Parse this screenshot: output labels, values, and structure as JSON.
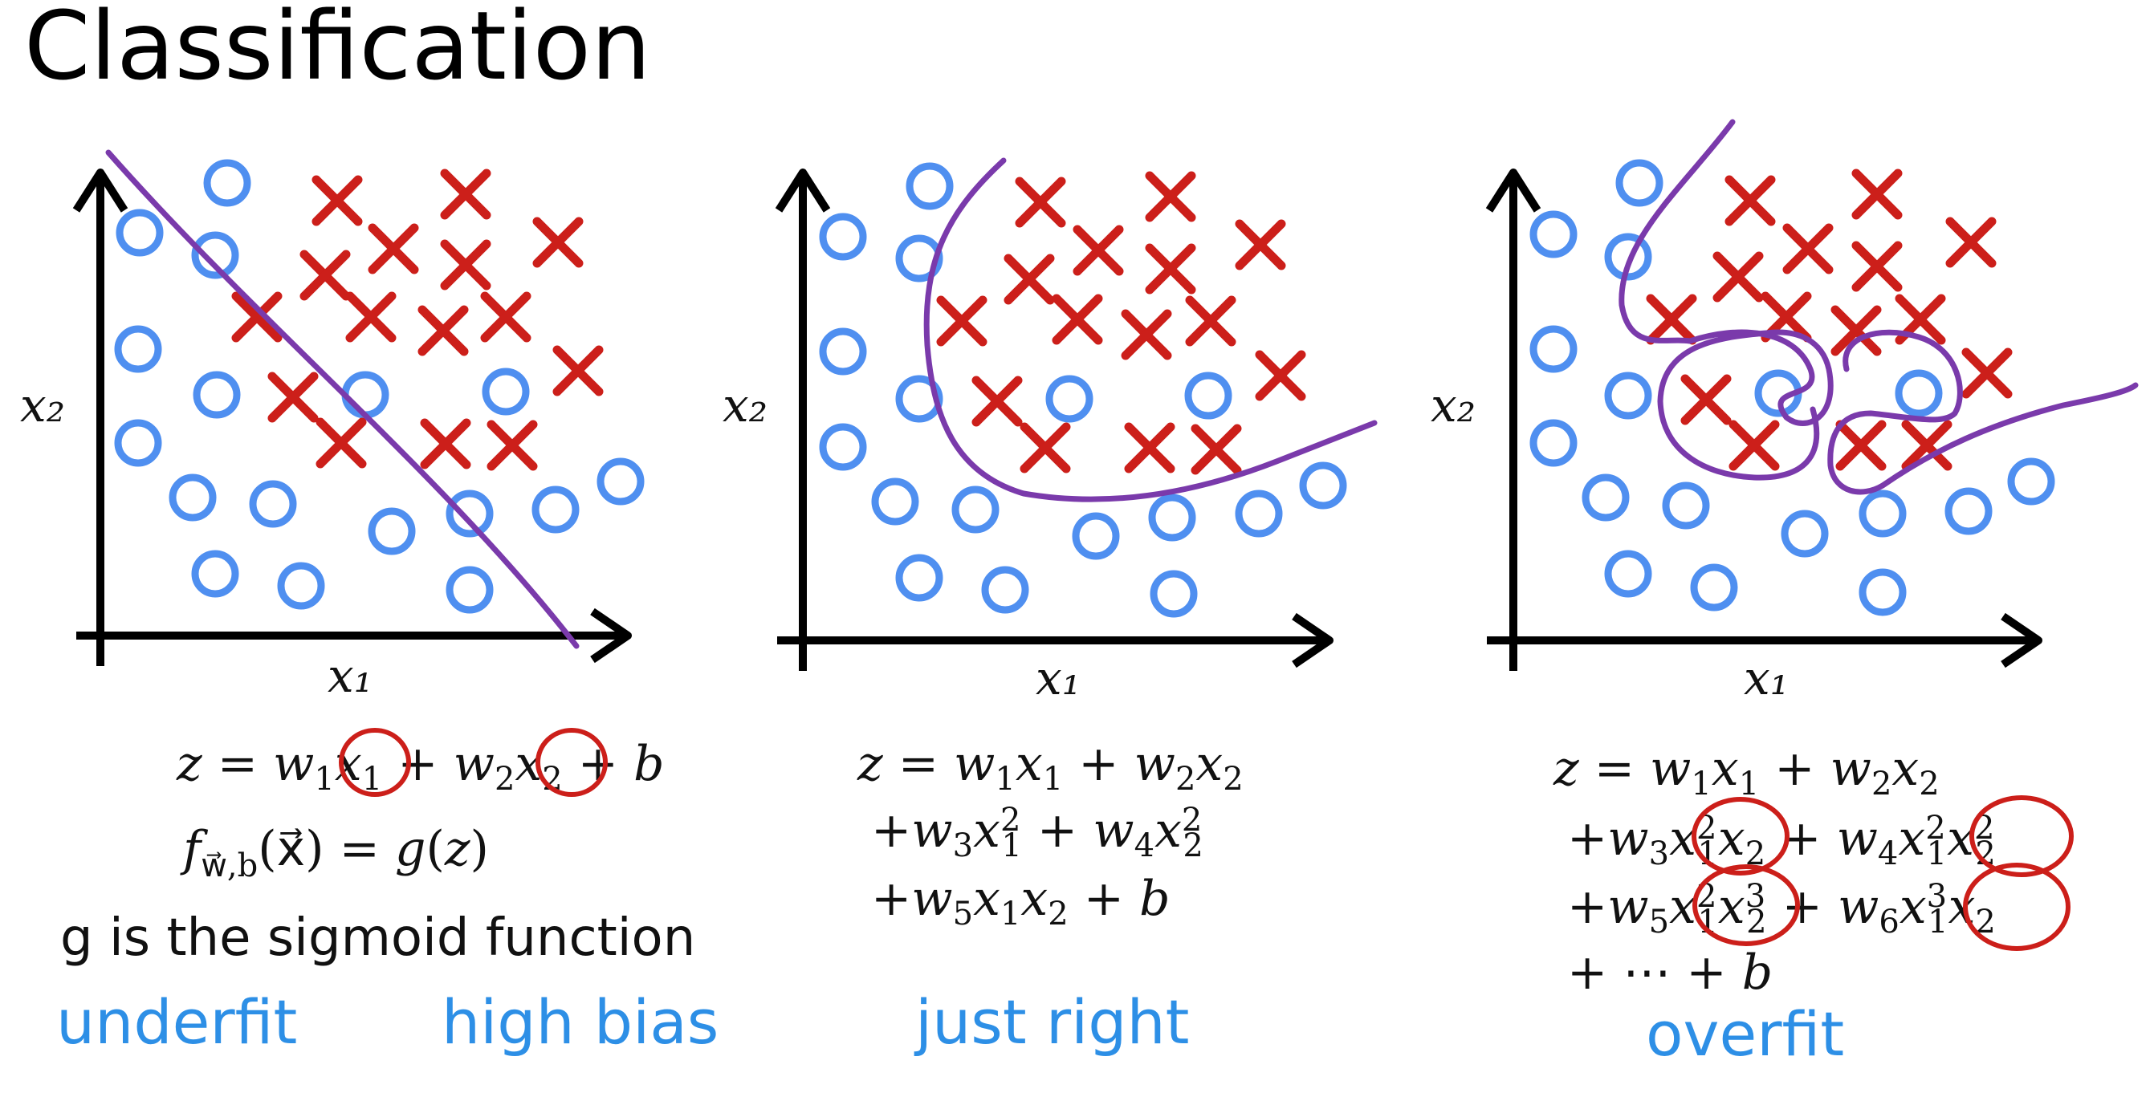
{
  "slide": {
    "title": "Classification"
  },
  "colors": {
    "circle": "#4f8ff0",
    "cross": "#cc1f1a",
    "boundary": "#7a3aab",
    "axis": "#000000",
    "handwriting": "#2d8fe6",
    "annotation": "#cc1f1a"
  },
  "panels": [
    {
      "x_label": "x₁",
      "y_label": "x₂",
      "equation_lines": [
        "z = w₁x₁ + w₂x₂ + b",
        "f w⃗,b (x⃗) = g(z)"
      ],
      "note": "g is the sigmoid function",
      "handwritten_labels": [
        "underfit",
        "high bias"
      ]
    },
    {
      "x_label": "x₁",
      "y_label": "x₂",
      "equation_lines": [
        "z = w₁x₁ + w₂x₂",
        "+w₃x₁² + w₄x₂²",
        "+w₅x₁x₂ + b"
      ],
      "handwritten_labels": [
        "just right"
      ]
    },
    {
      "x_label": "x₁",
      "y_label": "x₂",
      "equation_lines": [
        "z = w₁x₁ + w₂x₂",
        "+w₃x₁²x₂ + w₄x₁²x₂²",
        "+w₅x₁²x₂³ +  w₆x₁³x₂",
        "+ ⋯ + b"
      ],
      "handwritten_labels": [
        "overfit"
      ]
    }
  ]
}
